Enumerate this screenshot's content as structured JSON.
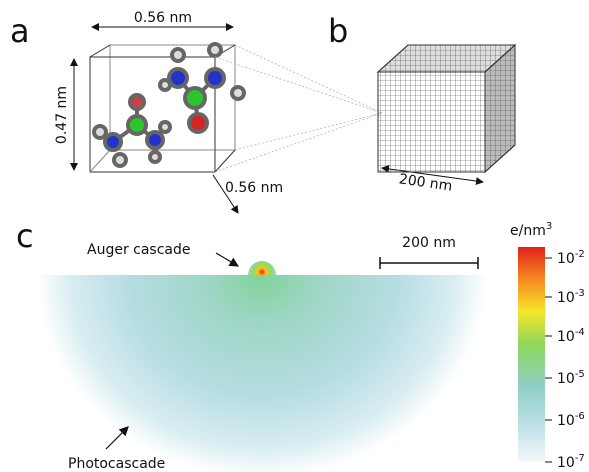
{
  "panels": {
    "a": "a",
    "b": "b",
    "c": "c"
  },
  "panel_a": {
    "width_label": "0.56 nm",
    "height_label": "0.47 nm",
    "depth_label": "0.56 nm"
  },
  "panel_b": {
    "size_label": "200 nm"
  },
  "panel_c": {
    "scale_bar": "200 nm",
    "auger_label": "Auger cascade",
    "photo_label": "Photocascade",
    "colorbar": {
      "unit": {
        "text": "e/nm",
        "sup": "3"
      },
      "ticks": [
        {
          "base": "10",
          "exp": "-2"
        },
        {
          "base": "10",
          "exp": "-3"
        },
        {
          "base": "10",
          "exp": "-4"
        },
        {
          "base": "10",
          "exp": "-5"
        },
        {
          "base": "10",
          "exp": "-6"
        },
        {
          "base": "10",
          "exp": "-7"
        }
      ]
    }
  }
}
